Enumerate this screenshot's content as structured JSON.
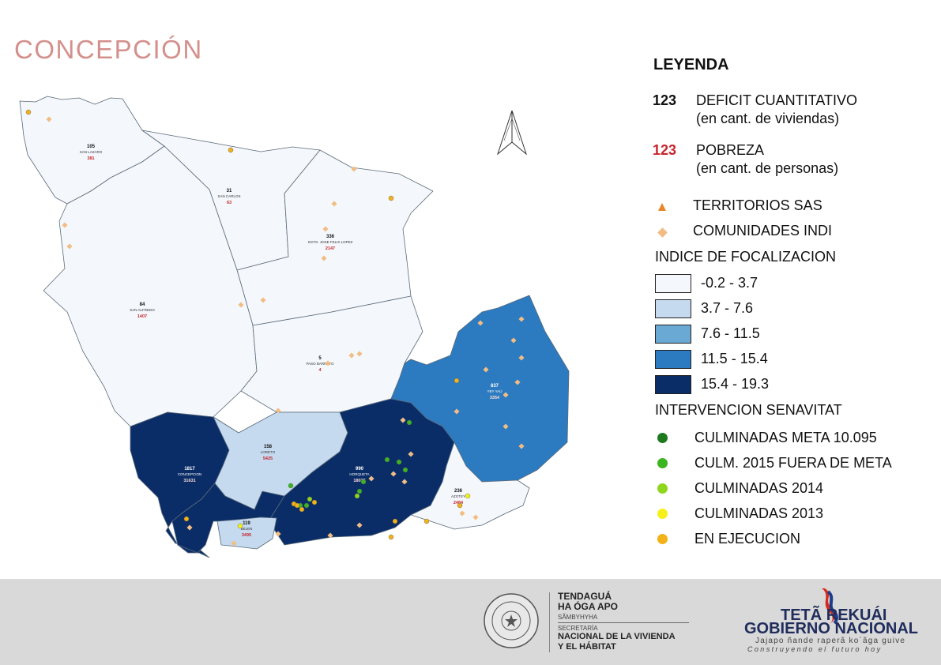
{
  "title": "CONCEPCIÓN",
  "legend": {
    "title": "LEYENDA",
    "deficit": {
      "number": "123",
      "label": "DEFICIT CUANTITATIVO",
      "sublabel": "(en cant. de viviendas)"
    },
    "pobreza": {
      "number": "123",
      "label": "POBREZA",
      "sublabel": "(en cant. de personas)"
    },
    "territorios": {
      "label": "TERRITORIOS SAS",
      "icon": "triangle-icon",
      "color": "#e8862a"
    },
    "comunidades": {
      "label": "COMUNIDADES INDI",
      "icon": "diamond-icon",
      "color": "#f2bd84"
    },
    "indice_title": "INDICE DE FOCALIZACION",
    "indice_classes": [
      {
        "label": "-0.2 - 3.7",
        "color": "#f4f7fb"
      },
      {
        "label": "3.7 - 7.6",
        "color": "#c5daee"
      },
      {
        "label": "7.6 - 11.5",
        "color": "#6aa9d4"
      },
      {
        "label": "11.5 - 15.4",
        "color": "#2c7abf"
      },
      {
        "label": "15.4 - 19.3",
        "color": "#0a2d68"
      }
    ],
    "intervencion_title": "INTERVENCION SENAVITAT",
    "intervencion": [
      {
        "label": "CULMINADAS META 10.095",
        "color": "#1f7a1f"
      },
      {
        "label": "CULM. 2015 FUERA DE META",
        "color": "#3cb521"
      },
      {
        "label": "CULMINADAS 2014",
        "color": "#8fd61c"
      },
      {
        "label": "CULMINADAS 2013",
        "color": "#f5f01a"
      },
      {
        "label": "EN EJECUCION",
        "color": "#f2b218"
      }
    ]
  },
  "districts": [
    {
      "name": "SAN LAZARO",
      "deficit": "105",
      "pobreza": "381",
      "index_class": 0
    },
    {
      "name": "SAN CARLOS",
      "deficit": "31",
      "pobreza": "63",
      "index_class": 0
    },
    {
      "name": "SGTO. JOSE FELIX LOPEZ",
      "deficit": "336",
      "pobreza": "2147",
      "index_class": 0
    },
    {
      "name": "SAN ALFREDO",
      "deficit": "84",
      "pobreza": "1407",
      "index_class": 0
    },
    {
      "name": "PASO BARRETO",
      "deficit": "5",
      "pobreza": "4",
      "index_class": 0
    },
    {
      "name": "YBY YAÚ",
      "deficit": "837",
      "pobreza": "3354",
      "index_class": 3
    },
    {
      "name": "CONCEPCION",
      "deficit": "1817",
      "pobreza": "31631",
      "index_class": 4
    },
    {
      "name": "LORETO",
      "deficit": "158",
      "pobreza": "5425",
      "index_class": 1
    },
    {
      "name": "HORQUETA",
      "deficit": "990",
      "pobreza": "18035",
      "index_class": 4
    },
    {
      "name": "AZOTEY",
      "deficit": "236",
      "pobreza": "2484",
      "index_class": 0
    },
    {
      "name": "BELEN",
      "deficit": "119",
      "pobreza": "3495",
      "index_class": 1
    }
  ],
  "north_arrow": {
    "icon": "north-arrow-icon"
  },
  "footer": {
    "seal_text": "REPÚBLICA DEL PARAGUAY",
    "line1": "TENDAGUÁ",
    "line2": "HA ÓGA APO",
    "line3": "SÃMBYHYHA",
    "line4": "SECRETARÍA",
    "line5": "NACIONAL DE LA VIVIENDA",
    "line6": "Y EL HÁBITAT",
    "gob_line1": "TETÃ REKUÁI",
    "gob_line2": "GOBIERNO NACIONAL",
    "gob_line3": "Jajapo ñande raperã ko´ãga guive",
    "gob_line4": "Construyendo el futuro hoy"
  }
}
